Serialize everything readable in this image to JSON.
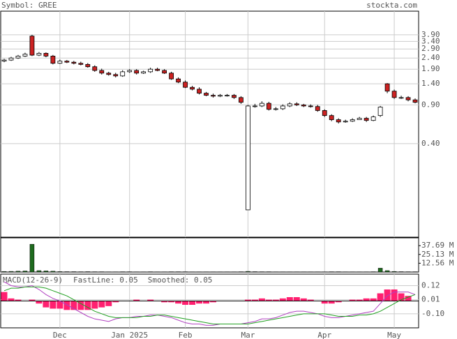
{
  "header": {
    "symbol": "Symbol: GREE",
    "site": "stockta.com"
  },
  "chart_data": [
    {
      "type": "candlestick",
      "categories": [
        null,
        null,
        null,
        null,
        null,
        null,
        null,
        null,
        "Dec",
        null,
        null,
        null,
        null,
        null,
        null,
        null,
        null,
        null,
        "Jan 2025",
        null,
        null,
        null,
        null,
        null,
        null,
        null,
        "Feb",
        null,
        null,
        null,
        null,
        null,
        null,
        null,
        null,
        "Mar",
        null,
        null,
        null,
        null,
        null,
        null,
        null,
        null,
        null,
        null,
        "Apr",
        null,
        null,
        null,
        null,
        null,
        null,
        null,
        null,
        null,
        "May",
        null,
        null,
        null
      ],
      "open": [
        2.25,
        2.3,
        2.4,
        2.5,
        3.8,
        2.55,
        2.65,
        2.5,
        2.15,
        2.25,
        2.2,
        2.15,
        2.1,
        2.0,
        1.85,
        1.75,
        1.7,
        1.65,
        1.8,
        1.85,
        1.75,
        1.8,
        1.9,
        1.85,
        1.75,
        1.55,
        1.45,
        1.3,
        1.25,
        1.15,
        1.1,
        1.08,
        1.1,
        1.1,
        1.05,
        0.1,
        0.88,
        0.88,
        0.93,
        0.82,
        0.83,
        0.88,
        0.92,
        0.9,
        0.88,
        0.87,
        0.8,
        0.72,
        0.66,
        0.63,
        0.64,
        0.66,
        0.68,
        0.65,
        0.72,
        1.4,
        1.2,
        1.05,
        1.05,
        1.0
      ],
      "high": [
        2.36,
        2.46,
        2.56,
        2.68,
        3.9,
        2.72,
        2.7,
        2.56,
        2.32,
        2.3,
        2.26,
        2.22,
        2.16,
        2.06,
        1.92,
        1.8,
        1.76,
        1.86,
        1.9,
        1.9,
        1.84,
        1.96,
        1.96,
        1.9,
        1.8,
        1.6,
        1.5,
        1.34,
        1.3,
        1.18,
        1.14,
        1.13,
        1.13,
        1.13,
        1.08,
        0.9,
        0.92,
        0.97,
        0.96,
        0.86,
        0.91,
        0.95,
        0.95,
        0.92,
        0.91,
        0.9,
        0.82,
        0.74,
        0.68,
        0.66,
        0.68,
        0.7,
        0.7,
        0.72,
        0.88,
        1.42,
        1.24,
        1.09,
        1.08,
        1.03
      ],
      "low": [
        2.2,
        2.26,
        2.36,
        2.46,
        2.5,
        2.5,
        2.44,
        2.1,
        2.12,
        2.16,
        2.1,
        2.06,
        1.96,
        1.8,
        1.7,
        1.66,
        1.6,
        1.62,
        1.76,
        1.7,
        1.72,
        1.76,
        1.82,
        1.72,
        1.52,
        1.42,
        1.28,
        1.22,
        1.12,
        1.08,
        1.05,
        1.06,
        1.07,
        1.02,
        0.92,
        0.1,
        0.85,
        0.86,
        0.8,
        0.8,
        0.81,
        0.86,
        0.88,
        0.86,
        0.85,
        0.78,
        0.7,
        0.64,
        0.61,
        0.62,
        0.63,
        0.66,
        0.63,
        0.64,
        0.7,
        1.15,
        1.02,
        1.02,
        0.97,
        0.93
      ],
      "close": [
        2.3,
        2.4,
        2.5,
        2.6,
        2.55,
        2.65,
        2.5,
        2.15,
        2.25,
        2.2,
        2.15,
        2.1,
        2.0,
        1.85,
        1.75,
        1.7,
        1.65,
        1.8,
        1.85,
        1.75,
        1.8,
        1.9,
        1.85,
        1.75,
        1.55,
        1.45,
        1.3,
        1.25,
        1.15,
        1.1,
        1.08,
        1.1,
        1.1,
        1.05,
        0.95,
        0.88,
        0.88,
        0.93,
        0.82,
        0.83,
        0.88,
        0.92,
        0.9,
        0.88,
        0.87,
        0.8,
        0.72,
        0.66,
        0.63,
        0.64,
        0.66,
        0.68,
        0.65,
        0.7,
        0.86,
        1.2,
        1.05,
        1.05,
        1.0,
        0.95
      ],
      "up_color": "#ffffff",
      "down_color": "#cc2222",
      "ylim": [
        0.0565,
        6.4
      ],
      "log_scale": true,
      "yticks": [
        {
          "value": 3.9,
          "label": "3.90"
        },
        {
          "value": 3.4,
          "label": "3.40"
        },
        {
          "value": 2.9,
          "label": "2.90"
        },
        {
          "value": 2.4,
          "label": "2.40"
        },
        {
          "value": 1.9,
          "label": "1.90"
        },
        {
          "value": 1.4,
          "label": "1.40"
        },
        {
          "value": 0.9,
          "label": "0.90"
        },
        {
          "value": 0.4,
          "label": "0.40"
        }
      ],
      "grid": true
    },
    {
      "type": "bar",
      "values": [
        0.8,
        0.9,
        1.2,
        1.5,
        39.7,
        2.0,
        1.6,
        1.2,
        0.6,
        0.5,
        0.5,
        0.4,
        0.5,
        0.4,
        0.4,
        0.3,
        0.3,
        0.4,
        0.4,
        0.3,
        0.3,
        0.4,
        0.3,
        0.3,
        0.4,
        0.4,
        0.4,
        0.3,
        0.3,
        0.3,
        0.3,
        0.3,
        0.3,
        0.3,
        0.4,
        0.9,
        0.5,
        0.4,
        0.4,
        0.3,
        0.3,
        0.3,
        0.3,
        0.3,
        0.3,
        0.3,
        0.3,
        0.4,
        0.4,
        0.3,
        0.3,
        0.3,
        0.3,
        0.4,
        5.5,
        2.0,
        0.8,
        0.5,
        0.4,
        0.4
      ],
      "color": "#1e6b1e",
      "ylim": [
        0,
        48.8
      ],
      "yticks": [
        {
          "value": 37.69,
          "label": "37.69 M"
        },
        {
          "value": 25.13,
          "label": "25.13 M"
        },
        {
          "value": 12.56,
          "label": "12.56 M"
        }
      ]
    },
    {
      "type": "line",
      "title": "MACD(12-26-9)",
      "series": [
        {
          "name": "FastLine: 0.05",
          "color": "#b040c0",
          "values": [
            0.15,
            0.12,
            0.11,
            0.11,
            0.12,
            0.09,
            0.05,
            0.02,
            0,
            -0.03,
            -0.06,
            -0.09,
            -0.12,
            -0.14,
            -0.15,
            -0.16,
            -0.14,
            -0.13,
            -0.13,
            -0.12,
            -0.12,
            -0.11,
            -0.11,
            -0.12,
            -0.13,
            -0.15,
            -0.17,
            -0.18,
            -0.18,
            -0.19,
            -0.19,
            -0.18,
            -0.18,
            -0.18,
            -0.18,
            -0.17,
            -0.16,
            -0.14,
            -0.14,
            -0.13,
            -0.11,
            -0.09,
            -0.08,
            -0.08,
            -0.09,
            -0.1,
            -0.12,
            -0.13,
            -0.13,
            -0.12,
            -0.11,
            -0.1,
            -0.09,
            -0.08,
            -0.02,
            0.04,
            0.07,
            0.07,
            0.07,
            0.05
          ]
        },
        {
          "name": "Smoothed: 0.05",
          "color": "#20a020",
          "values": [
            0.08,
            0.1,
            0.1,
            0.11,
            0.11,
            0.11,
            0.1,
            0.08,
            0.06,
            0.04,
            0.01,
            -0.02,
            -0.05,
            -0.08,
            -0.1,
            -0.12,
            -0.13,
            -0.13,
            -0.13,
            -0.13,
            -0.12,
            -0.12,
            -0.11,
            -0.11,
            -0.12,
            -0.13,
            -0.14,
            -0.15,
            -0.16,
            -0.17,
            -0.18,
            -0.18,
            -0.18,
            -0.18,
            -0.18,
            -0.18,
            -0.17,
            -0.16,
            -0.15,
            -0.14,
            -0.13,
            -0.12,
            -0.11,
            -0.1,
            -0.1,
            -0.1,
            -0.1,
            -0.11,
            -0.12,
            -0.12,
            -0.12,
            -0.11,
            -0.11,
            -0.1,
            -0.08,
            -0.05,
            -0.02,
            0.01,
            0.03,
            0.05
          ]
        }
      ],
      "histogram": {
        "color": "#ff2070",
        "values": [
          0.07,
          0.02,
          0.01,
          0,
          0.01,
          -0.02,
          -0.05,
          -0.06,
          -0.06,
          -0.07,
          -0.07,
          -0.07,
          -0.07,
          -0.06,
          -0.05,
          -0.04,
          -0.01,
          0,
          0,
          0.01,
          0,
          0.01,
          0,
          -0.01,
          -0.01,
          -0.02,
          -0.03,
          -0.03,
          -0.02,
          -0.02,
          -0.01,
          0,
          0,
          0,
          0,
          0.01,
          0.01,
          0.02,
          0.01,
          0.01,
          0.02,
          0.03,
          0.03,
          0.02,
          0.01,
          0,
          -0.02,
          -0.02,
          -0.01,
          0,
          0.01,
          0.01,
          0.02,
          0.02,
          0.06,
          0.09,
          0.09,
          0.06,
          0.04,
          0
        ]
      },
      "ylim": [
        -0.21,
        0.21
      ],
      "yticks": [
        0.12,
        0.01,
        {
          "value": -0.1,
          "label": "-0.10"
        }
      ]
    }
  ]
}
